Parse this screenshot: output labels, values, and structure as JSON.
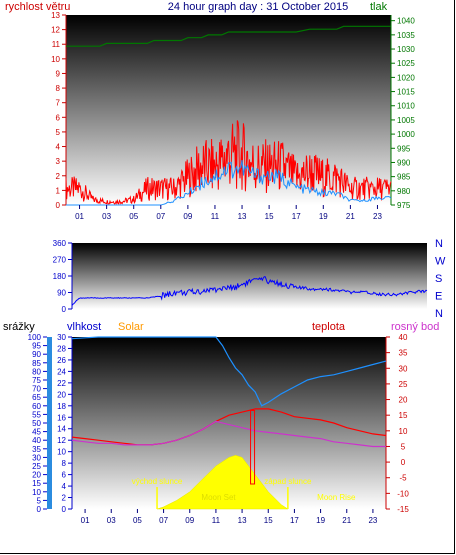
{
  "chart_data": [
    {
      "type": "line",
      "title": "24 hour graph day : 31 October 2015",
      "ylabel_left": "rychlost větru",
      "ylabel_right": "tlak",
      "x_ticks": [
        "01",
        "03",
        "05",
        "07",
        "09",
        "11",
        "13",
        "15",
        "17",
        "19",
        "21",
        "23"
      ],
      "xlim": [
        0,
        24
      ],
      "ylim_left": [
        0,
        13
      ],
      "y_ticks_left": [
        0,
        1,
        2,
        3,
        4,
        5,
        6,
        7,
        8,
        9,
        10,
        11,
        12,
        13
      ],
      "ylim_right": [
        975,
        1042
      ],
      "y_ticks_right": [
        975,
        980,
        985,
        990,
        995,
        1000,
        1005,
        1010,
        1015,
        1020,
        1025,
        1030,
        1035,
        1040
      ],
      "series": [
        {
          "key": "pressure",
          "axis": "right",
          "color": "#007700",
          "x": [
            0,
            2.5,
            3,
            6,
            6.5,
            8.5,
            9,
            10,
            10.5,
            11.5,
            12,
            14,
            15,
            17,
            18,
            20,
            20.5,
            22.5,
            23,
            24
          ],
          "y": [
            1031,
            1031,
            1032,
            1032,
            1033,
            1033,
            1034,
            1034,
            1035,
            1035,
            1036,
            1036,
            1036,
            1036,
            1037,
            1037,
            1038,
            1038,
            1038,
            1038
          ]
        },
        {
          "key": "gust",
          "axis": "left",
          "color": "#ff0000",
          "x": [
            0,
            1,
            2,
            3,
            4,
            5,
            6,
            7,
            8,
            9,
            10,
            11,
            12,
            13,
            14,
            15,
            16,
            17,
            18,
            19,
            20,
            21,
            22,
            23,
            24
          ],
          "y": [
            1.5,
            1.5,
            0.5,
            0.3,
            0.3,
            0.5,
            1.5,
            1.5,
            1.5,
            2.5,
            3.5,
            3.5,
            4.5,
            4.5,
            3.5,
            3.5,
            3.5,
            2.5,
            3.0,
            2.5,
            2.5,
            1.5,
            1.5,
            1.5,
            1.5
          ]
        },
        {
          "key": "wind",
          "axis": "left",
          "color": "#1e90ff",
          "x": [
            0,
            1,
            2,
            3,
            4,
            5,
            6,
            7,
            8,
            9,
            10,
            11,
            12,
            13,
            14,
            15,
            16,
            17,
            18,
            19,
            20,
            21,
            22,
            23,
            24
          ],
          "y": [
            0,
            0,
            0,
            0,
            0,
            0,
            0,
            0,
            0.3,
            0.8,
            1.5,
            2.0,
            2.5,
            2.5,
            2.0,
            2.0,
            1.8,
            1.2,
            1.0,
            0.8,
            0.8,
            0.3,
            0.3,
            0.5,
            0.5
          ]
        }
      ]
    },
    {
      "type": "line",
      "ylabel_right": [
        "N",
        "W",
        "S",
        "E",
        "N"
      ],
      "x_ticks": [],
      "xlim": [
        0,
        24
      ],
      "ylim": [
        0,
        360
      ],
      "y_ticks": [
        0,
        90,
        180,
        270,
        360
      ],
      "series": [
        {
          "key": "direction",
          "color": "#0000ff",
          "x": [
            0,
            0.5,
            1,
            5,
            6,
            7,
            8,
            9,
            10,
            11,
            12,
            13,
            14,
            15,
            16,
            17,
            18,
            19,
            20,
            21,
            22,
            23,
            24
          ],
          "y": [
            20,
            60,
            60,
            60,
            70,
            90,
            90,
            100,
            110,
            120,
            150,
            160,
            140,
            120,
            110,
            110,
            100,
            90,
            90,
            80,
            80,
            90,
            100
          ]
        }
      ]
    },
    {
      "type": "line",
      "labels": {
        "precip": "srážky",
        "humidity": "vlhkost",
        "solar": "Solar",
        "temp": "teplota",
        "dew": "rosný bod"
      },
      "annotations": {
        "sunrise": "východ slunce",
        "sunset": "západ slunce",
        "moonset": "Moon Set",
        "moonrise": "Moon Rise"
      },
      "x_ticks": [
        "01",
        "03",
        "05",
        "07",
        "09",
        "11",
        "13",
        "15",
        "17",
        "19",
        "21",
        "23"
      ],
      "xlim": [
        0,
        24
      ],
      "y_ticks_precip": [
        0,
        5,
        10,
        15,
        20,
        25,
        30,
        35,
        40,
        45,
        50,
        55,
        60,
        65,
        70,
        75,
        80,
        85,
        90,
        95,
        100
      ],
      "y_ticks_humidity": [
        0,
        2,
        4,
        6,
        8,
        10,
        12,
        14,
        16,
        18,
        20,
        22,
        24,
        26,
        28,
        30
      ],
      "ylim_temp": [
        -15,
        40
      ],
      "y_ticks_temp": [
        -15,
        -10,
        -5,
        0,
        5,
        10,
        15,
        20,
        25,
        30,
        35,
        40
      ],
      "series": [
        {
          "key": "humidity_line",
          "color": "#1e90ff",
          "x": [
            0,
            2,
            4,
            6,
            8,
            10,
            11,
            11.5,
            12,
            12.5,
            13,
            13.5,
            14,
            14.5,
            15,
            16,
            17,
            18,
            19,
            20,
            21,
            22,
            23,
            24
          ],
          "y": [
            99,
            100,
            100,
            100,
            100,
            100,
            100,
            95,
            88,
            82,
            78,
            72,
            68,
            60,
            62,
            67,
            71,
            75,
            77,
            78,
            80,
            82,
            84,
            86
          ]
        },
        {
          "key": "temperature",
          "color": "#ff0000",
          "x": [
            0,
            1,
            2,
            3,
            4,
            5,
            6,
            7,
            8,
            9,
            10,
            11,
            12,
            13,
            14,
            15,
            16,
            17,
            18,
            19,
            20,
            21,
            22,
            23,
            24
          ],
          "y": [
            8,
            7.5,
            7,
            6.5,
            6,
            5.5,
            5.5,
            6,
            7,
            8.5,
            10.5,
            13,
            15,
            16,
            17,
            17,
            16,
            14.5,
            14,
            13.5,
            12.5,
            11,
            10,
            9,
            8.5
          ]
        },
        {
          "key": "dewpoint",
          "color": "#cc33cc",
          "x": [
            0,
            1,
            2,
            3,
            4,
            5,
            6,
            7,
            8,
            9,
            10,
            11,
            12,
            13,
            14,
            15,
            16,
            17,
            18,
            19,
            20,
            21,
            22,
            23,
            24
          ],
          "y": [
            7,
            6.5,
            6,
            6,
            5.5,
            5.5,
            5.5,
            6,
            7,
            8.5,
            10.5,
            13,
            12,
            11,
            10,
            9.5,
            9,
            8.5,
            8,
            7.5,
            6.5,
            6,
            5.5,
            5,
            5
          ]
        }
      ],
      "solar": {
        "color": "#ffff00",
        "x": [
          6.5,
          7,
          8,
          9,
          10,
          11,
          12,
          12.5,
          13,
          14,
          15,
          16,
          16.5
        ],
        "y": [
          0,
          0.5,
          2,
          4,
          7,
          10,
          12,
          12.5,
          12,
          8,
          4,
          1,
          0
        ]
      },
      "markers": {
        "sunrise_x": 6.5,
        "sunset_x": 16.5,
        "temp_spike_x": 13.8
      }
    }
  ]
}
